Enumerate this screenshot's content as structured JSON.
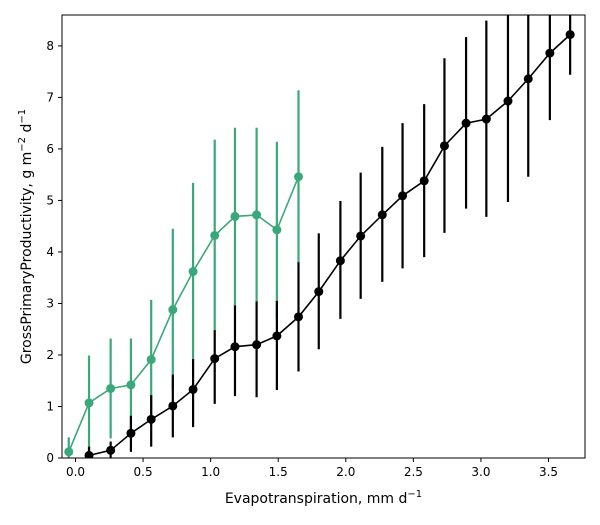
{
  "chart_data": {
    "type": "line",
    "xlabel": "Evapotranspiration,  mm d",
    "xlabel_sup": "−1",
    "ylabel": "GrossPrimaryProductivity,  g m",
    "ylabel_sup1": "−2",
    "ylabel_mid": " d",
    "ylabel_sup2": "−1",
    "xlim": [
      -0.1,
      3.77
    ],
    "ylim": [
      0,
      8.6
    ],
    "xticks": [
      "0.0",
      "0.5",
      "1.0",
      "1.5",
      "2.0",
      "2.5",
      "3.0",
      "3.5"
    ],
    "yticks": [
      "0",
      "1",
      "2",
      "3",
      "4",
      "5",
      "6",
      "7",
      "8"
    ],
    "grid": false,
    "series": [
      {
        "color": "#3aa87a",
        "x": [
          -0.05,
          0.1,
          0.26,
          0.41,
          0.56,
          0.72,
          0.87,
          1.03,
          1.18,
          1.34,
          1.49,
          1.65
        ],
        "y": [
          0.12,
          1.07,
          1.35,
          1.42,
          1.91,
          2.88,
          3.62,
          4.32,
          4.69,
          4.72,
          4.43,
          5.46
        ],
        "ylow": [
          0.0,
          0.0,
          0.38,
          0.52,
          0.75,
          1.32,
          1.9,
          2.45,
          2.95,
          3.02,
          2.72,
          3.78
        ],
        "yhigh": [
          0.4,
          1.99,
          2.32,
          2.32,
          3.07,
          4.45,
          5.34,
          6.18,
          6.41,
          6.41,
          6.14,
          7.14
        ]
      },
      {
        "color": "#000000",
        "x": [
          0.1,
          0.26,
          0.41,
          0.56,
          0.72,
          0.87,
          1.03,
          1.18,
          1.34,
          1.49,
          1.65,
          1.8,
          1.96,
          2.11,
          2.27,
          2.42,
          2.58,
          2.73,
          2.89,
          3.04,
          3.2,
          3.35,
          3.51,
          3.66
        ],
        "y": [
          0.05,
          0.15,
          0.48,
          0.75,
          1.01,
          1.33,
          1.93,
          2.16,
          2.2,
          2.37,
          2.74,
          3.23,
          3.83,
          4.31,
          4.72,
          5.09,
          5.38,
          6.06,
          6.5,
          6.58,
          6.93,
          7.36,
          7.86,
          8.22
        ],
        "ylow": [
          0.0,
          0.0,
          0.12,
          0.22,
          0.4,
          0.6,
          1.05,
          1.2,
          1.18,
          1.32,
          1.68,
          2.11,
          2.7,
          3.09,
          3.42,
          3.68,
          3.9,
          4.37,
          4.84,
          4.68,
          4.97,
          5.46,
          6.56,
          7.44
        ],
        "yhigh": [
          0.22,
          0.32,
          0.82,
          1.22,
          1.62,
          1.92,
          2.48,
          2.96,
          3.04,
          3.05,
          3.8,
          4.36,
          4.99,
          5.54,
          6.04,
          6.5,
          6.87,
          7.76,
          8.17,
          8.49,
          8.6,
          8.6,
          8.6,
          8.6
        ]
      }
    ]
  }
}
